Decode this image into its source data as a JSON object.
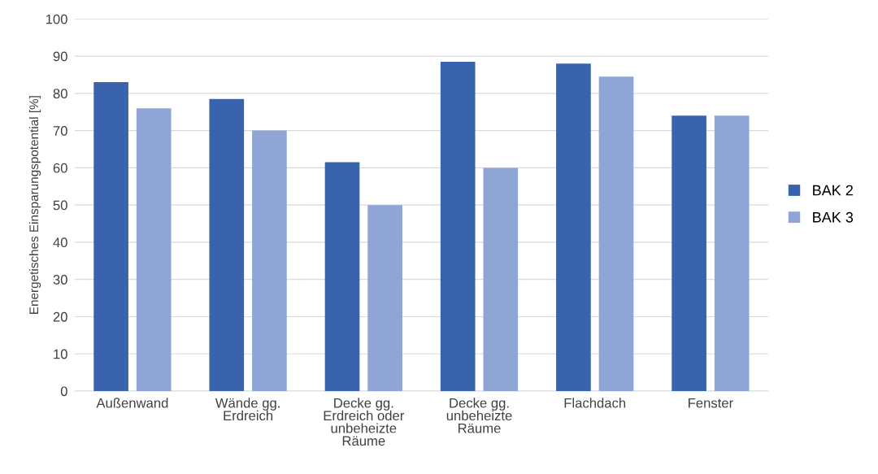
{
  "chart_data": {
    "type": "bar",
    "ylabel": "Energetisches Einsparungspotential [%]",
    "categories": [
      "Außenwand",
      "Wände gg.\nErdreich",
      "Decke gg.\nErdreich oder\nunbeheizte\nRäume",
      "Decke gg.\nunbeheizte\nRäume",
      "Flachdach",
      "Fenster"
    ],
    "series": [
      {
        "name": "BAK 2",
        "color": "#3a63ad",
        "values": [
          83,
          78.5,
          61.5,
          88.5,
          88,
          74
        ]
      },
      {
        "name": "BAK 3",
        "color": "#8fa5d6",
        "values": [
          76,
          70,
          50,
          60,
          84.5,
          74
        ]
      }
    ],
    "ylim": [
      0,
      100
    ],
    "yticks": [
      0,
      10,
      20,
      30,
      40,
      50,
      60,
      70,
      80,
      90,
      100
    ],
    "grid": "y",
    "legend": "right"
  }
}
